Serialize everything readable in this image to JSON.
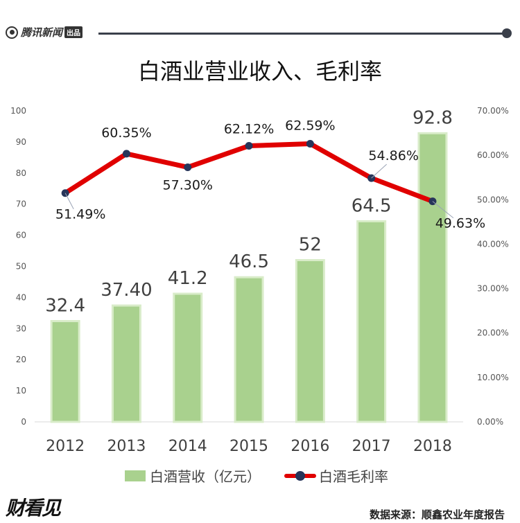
{
  "header": {
    "logo_text": "腾讯新闻",
    "logo_badge": "出品"
  },
  "brand": "财看见",
  "source": "数据来源：顺鑫农业年度报告",
  "colors": {
    "bar": "#a9d18e",
    "bar_stroke": "#d9ecc9",
    "line": "#e00000",
    "marker": "#27355a",
    "axis_text": "#555555"
  },
  "chart_data": {
    "type": "bar",
    "title": "白酒业营业收入、毛利率",
    "categories": [
      "2012",
      "2013",
      "2014",
      "2015",
      "2016",
      "2017",
      "2018"
    ],
    "series": [
      {
        "name": "白酒营收（亿元）",
        "type": "bar",
        "axis": "left",
        "values": [
          32.4,
          37.4,
          41.2,
          46.5,
          52,
          64.5,
          92.8
        ],
        "labels": [
          "32.4",
          "37.40",
          "41.2",
          "46.5",
          "52",
          "64.5",
          "92.8"
        ]
      },
      {
        "name": "白酒毛利率",
        "type": "line",
        "axis": "right",
        "values": [
          51.49,
          60.35,
          57.3,
          62.12,
          62.59,
          54.86,
          49.63
        ],
        "labels": [
          "51.49%",
          "60.35%",
          "57.30%",
          "62.12%",
          "62.59%",
          "54.86%",
          "49.63%"
        ]
      }
    ],
    "y_left": {
      "range": [
        0,
        100
      ],
      "ticks": [
        "0",
        "10",
        "20",
        "30",
        "40",
        "50",
        "60",
        "70",
        "80",
        "90",
        "100"
      ]
    },
    "y_right": {
      "range": [
        0,
        70
      ],
      "ticks": [
        "0.00%",
        "10.00%",
        "20.00%",
        "30.00%",
        "40.00%",
        "50.00%",
        "60.00%",
        "70.00%"
      ]
    },
    "grid": false,
    "legend_position": "bottom"
  }
}
